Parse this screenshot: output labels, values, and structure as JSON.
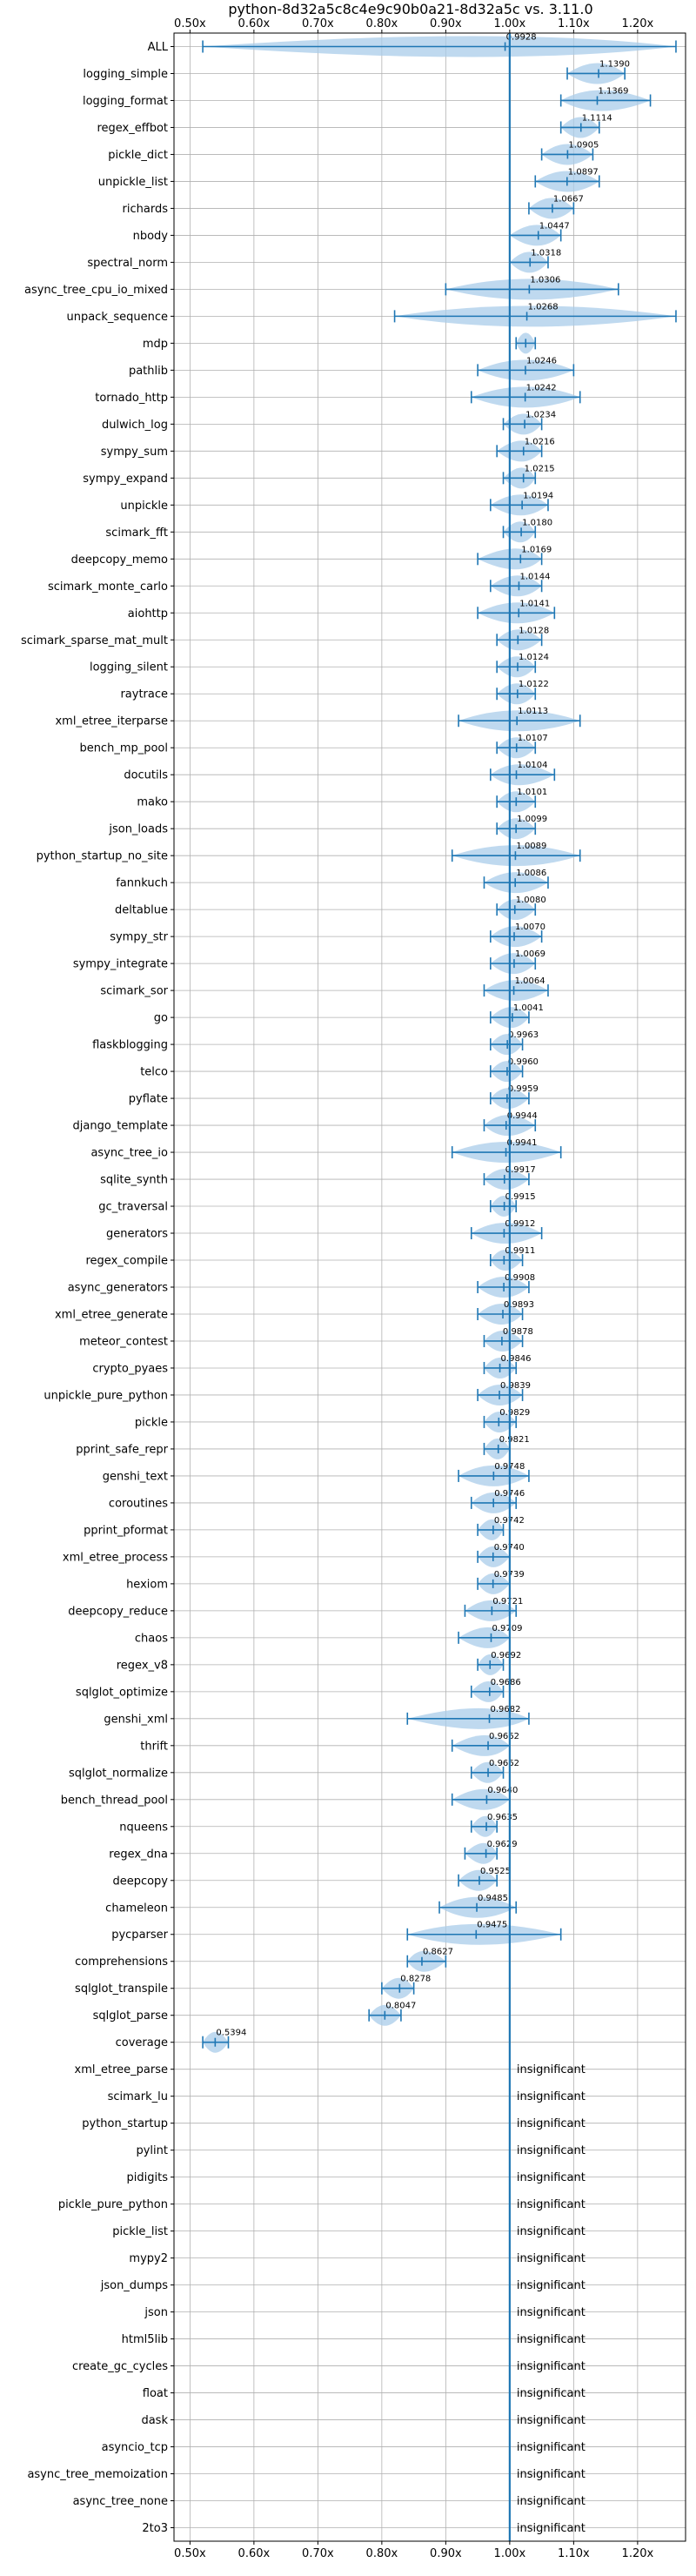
{
  "chart_data": {
    "type": "violin",
    "title": "python-8d32a5c8c4e9c90b0a21-8d32a5c vs. 3.11.0",
    "xlim": [
      0.475,
      1.275
    ],
    "x_ticks": [
      0.5,
      0.6,
      0.7,
      0.8,
      0.9,
      1.0,
      1.1,
      1.2
    ],
    "x_tick_labels": [
      "0.50x",
      "0.60x",
      "0.70x",
      "0.80x",
      "0.90x",
      "1.00x",
      "1.10x",
      "1.20x"
    ],
    "reference_line": 1.0,
    "grid": true,
    "colors": {
      "violin": "#a9cce9",
      "line": "#1f77b4",
      "grid": "#b0b0b0"
    },
    "insignificant_text": "insignificant",
    "benchmarks": [
      {
        "name": "ALL",
        "value": 0.9928,
        "min": 0.52,
        "max": 1.26
      },
      {
        "name": "logging_simple",
        "value": 1.139,
        "min": 1.09,
        "max": 1.18
      },
      {
        "name": "logging_format",
        "value": 1.1369,
        "min": 1.08,
        "max": 1.22
      },
      {
        "name": "regex_effbot",
        "value": 1.1114,
        "min": 1.08,
        "max": 1.14
      },
      {
        "name": "pickle_dict",
        "value": 1.0905,
        "min": 1.05,
        "max": 1.13
      },
      {
        "name": "unpickle_list",
        "value": 1.0897,
        "min": 1.04,
        "max": 1.14
      },
      {
        "name": "richards",
        "value": 1.0667,
        "min": 1.03,
        "max": 1.1
      },
      {
        "name": "nbody",
        "value": 1.0447,
        "min": 1.0,
        "max": 1.08
      },
      {
        "name": "spectral_norm",
        "value": 1.0318,
        "min": 1.0,
        "max": 1.06
      },
      {
        "name": "async_tree_cpu_io_mixed",
        "value": 1.0306,
        "min": 0.9,
        "max": 1.17
      },
      {
        "name": "unpack_sequence",
        "value": 1.0268,
        "min": 0.82,
        "max": 1.26
      },
      {
        "name": "mdp",
        "value": null,
        "min": 1.01,
        "max": 1.04
      },
      {
        "name": "pathlib",
        "value": 1.0246,
        "min": 0.95,
        "max": 1.1
      },
      {
        "name": "tornado_http",
        "value": 1.0242,
        "min": 0.94,
        "max": 1.11
      },
      {
        "name": "dulwich_log",
        "value": 1.0234,
        "min": 0.99,
        "max": 1.05
      },
      {
        "name": "sympy_sum",
        "value": 1.0216,
        "min": 0.98,
        "max": 1.05
      },
      {
        "name": "sympy_expand",
        "value": 1.0215,
        "min": 0.99,
        "max": 1.04
      },
      {
        "name": "unpickle",
        "value": 1.0194,
        "min": 0.97,
        "max": 1.06
      },
      {
        "name": "scimark_fft",
        "value": 1.018,
        "min": 0.99,
        "max": 1.04
      },
      {
        "name": "deepcopy_memo",
        "value": 1.0169,
        "min": 0.95,
        "max": 1.05
      },
      {
        "name": "scimark_monte_carlo",
        "value": 1.0144,
        "min": 0.97,
        "max": 1.05
      },
      {
        "name": "aiohttp",
        "value": 1.0141,
        "min": 0.95,
        "max": 1.07
      },
      {
        "name": "scimark_sparse_mat_mult",
        "value": 1.0128,
        "min": 0.98,
        "max": 1.05
      },
      {
        "name": "logging_silent",
        "value": 1.0124,
        "min": 0.98,
        "max": 1.04
      },
      {
        "name": "raytrace",
        "value": 1.0122,
        "min": 0.98,
        "max": 1.04
      },
      {
        "name": "xml_etree_iterparse",
        "value": 1.0113,
        "min": 0.92,
        "max": 1.11
      },
      {
        "name": "bench_mp_pool",
        "value": 1.0107,
        "min": 0.98,
        "max": 1.04
      },
      {
        "name": "docutils",
        "value": 1.0104,
        "min": 0.97,
        "max": 1.07
      },
      {
        "name": "mako",
        "value": 1.0101,
        "min": 0.98,
        "max": 1.04
      },
      {
        "name": "json_loads",
        "value": 1.0099,
        "min": 0.98,
        "max": 1.04
      },
      {
        "name": "python_startup_no_site",
        "value": 1.0089,
        "min": 0.91,
        "max": 1.11
      },
      {
        "name": "fannkuch",
        "value": 1.0086,
        "min": 0.96,
        "max": 1.06
      },
      {
        "name": "deltablue",
        "value": 1.008,
        "min": 0.98,
        "max": 1.04
      },
      {
        "name": "sympy_str",
        "value": 1.007,
        "min": 0.97,
        "max": 1.05
      },
      {
        "name": "sympy_integrate",
        "value": 1.0069,
        "min": 0.97,
        "max": 1.04
      },
      {
        "name": "scimark_sor",
        "value": 1.0064,
        "min": 0.96,
        "max": 1.06
      },
      {
        "name": "go",
        "value": 1.0041,
        "min": 0.97,
        "max": 1.03
      },
      {
        "name": "flaskblogging",
        "value": 0.9963,
        "min": 0.97,
        "max": 1.02
      },
      {
        "name": "telco",
        "value": 0.996,
        "min": 0.97,
        "max": 1.02
      },
      {
        "name": "pyflate",
        "value": 0.9959,
        "min": 0.97,
        "max": 1.03
      },
      {
        "name": "django_template",
        "value": 0.9944,
        "min": 0.96,
        "max": 1.04
      },
      {
        "name": "async_tree_io",
        "value": 0.9941,
        "min": 0.91,
        "max": 1.08
      },
      {
        "name": "sqlite_synth",
        "value": 0.9917,
        "min": 0.96,
        "max": 1.03
      },
      {
        "name": "gc_traversal",
        "value": 0.9915,
        "min": 0.97,
        "max": 1.01
      },
      {
        "name": "generators",
        "value": 0.9912,
        "min": 0.94,
        "max": 1.05
      },
      {
        "name": "regex_compile",
        "value": 0.9911,
        "min": 0.97,
        "max": 1.02
      },
      {
        "name": "async_generators",
        "value": 0.9908,
        "min": 0.95,
        "max": 1.03
      },
      {
        "name": "xml_etree_generate",
        "value": 0.9893,
        "min": 0.95,
        "max": 1.02
      },
      {
        "name": "meteor_contest",
        "value": 0.9878,
        "min": 0.96,
        "max": 1.02
      },
      {
        "name": "crypto_pyaes",
        "value": 0.9846,
        "min": 0.96,
        "max": 1.01
      },
      {
        "name": "unpickle_pure_python",
        "value": 0.9839,
        "min": 0.95,
        "max": 1.02
      },
      {
        "name": "pickle",
        "value": 0.9829,
        "min": 0.96,
        "max": 1.01
      },
      {
        "name": "pprint_safe_repr",
        "value": 0.9821,
        "min": 0.96,
        "max": 1.0
      },
      {
        "name": "genshi_text",
        "value": 0.9748,
        "min": 0.92,
        "max": 1.03
      },
      {
        "name": "coroutines",
        "value": 0.9746,
        "min": 0.94,
        "max": 1.01
      },
      {
        "name": "pprint_pformat",
        "value": 0.9742,
        "min": 0.95,
        "max": 0.99
      },
      {
        "name": "xml_etree_process",
        "value": 0.974,
        "min": 0.95,
        "max": 1.0
      },
      {
        "name": "hexiom",
        "value": 0.9739,
        "min": 0.95,
        "max": 1.0
      },
      {
        "name": "deepcopy_reduce",
        "value": 0.9721,
        "min": 0.93,
        "max": 1.01
      },
      {
        "name": "chaos",
        "value": 0.9709,
        "min": 0.92,
        "max": 1.0
      },
      {
        "name": "regex_v8",
        "value": 0.9692,
        "min": 0.95,
        "max": 0.99
      },
      {
        "name": "sqlglot_optimize",
        "value": 0.9686,
        "min": 0.94,
        "max": 0.99
      },
      {
        "name": "genshi_xml",
        "value": 0.9682,
        "min": 0.84,
        "max": 1.03
      },
      {
        "name": "thrift",
        "value": 0.9662,
        "min": 0.91,
        "max": 1.0
      },
      {
        "name": "sqlglot_normalize",
        "value": 0.9662,
        "min": 0.94,
        "max": 0.99
      },
      {
        "name": "bench_thread_pool",
        "value": 0.964,
        "min": 0.91,
        "max": 1.0
      },
      {
        "name": "nqueens",
        "value": 0.9635,
        "min": 0.94,
        "max": 0.98
      },
      {
        "name": "regex_dna",
        "value": 0.9629,
        "min": 0.93,
        "max": 0.98
      },
      {
        "name": "deepcopy",
        "value": 0.9525,
        "min": 0.92,
        "max": 0.98
      },
      {
        "name": "chameleon",
        "value": 0.9485,
        "min": 0.89,
        "max": 1.01
      },
      {
        "name": "pycparser",
        "value": 0.9475,
        "min": 0.84,
        "max": 1.08
      },
      {
        "name": "comprehensions",
        "value": 0.8627,
        "min": 0.84,
        "max": 0.9
      },
      {
        "name": "sqlglot_transpile",
        "value": 0.8278,
        "min": 0.8,
        "max": 0.85
      },
      {
        "name": "sqlglot_parse",
        "value": 0.8047,
        "min": 0.78,
        "max": 0.83
      },
      {
        "name": "coverage",
        "value": 0.5394,
        "min": 0.52,
        "max": 0.56
      },
      {
        "name": "xml_etree_parse",
        "value": null,
        "insignificant": true
      },
      {
        "name": "scimark_lu",
        "value": null,
        "insignificant": true
      },
      {
        "name": "python_startup",
        "value": null,
        "insignificant": true
      },
      {
        "name": "pylint",
        "value": null,
        "insignificant": true
      },
      {
        "name": "pidigits",
        "value": null,
        "insignificant": true
      },
      {
        "name": "pickle_pure_python",
        "value": null,
        "insignificant": true
      },
      {
        "name": "pickle_list",
        "value": null,
        "insignificant": true
      },
      {
        "name": "mypy2",
        "value": null,
        "insignificant": true
      },
      {
        "name": "json_dumps",
        "value": null,
        "insignificant": true
      },
      {
        "name": "json",
        "value": null,
        "insignificant": true
      },
      {
        "name": "html5lib",
        "value": null,
        "insignificant": true
      },
      {
        "name": "create_gc_cycles",
        "value": null,
        "insignificant": true
      },
      {
        "name": "float",
        "value": null,
        "insignificant": true
      },
      {
        "name": "dask",
        "value": null,
        "insignificant": true
      },
      {
        "name": "asyncio_tcp",
        "value": null,
        "insignificant": true
      },
      {
        "name": "async_tree_memoization",
        "value": null,
        "insignificant": true
      },
      {
        "name": "async_tree_none",
        "value": null,
        "insignificant": true
      },
      {
        "name": "2to3",
        "value": null,
        "insignificant": true
      }
    ]
  }
}
